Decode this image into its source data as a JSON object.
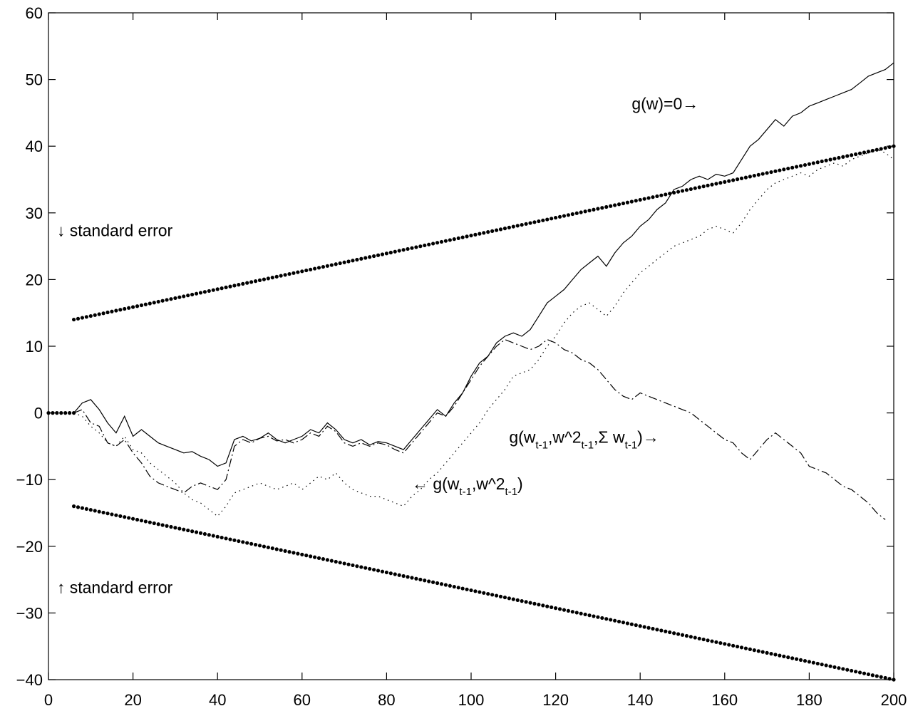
{
  "chart_data": {
    "type": "line",
    "title": "",
    "xlabel": "",
    "ylabel": "",
    "xlim": [
      0,
      200
    ],
    "ylim": [
      -40,
      60
    ],
    "xticks": [
      0,
      20,
      40,
      60,
      80,
      100,
      120,
      140,
      160,
      180,
      200
    ],
    "yticks": [
      -40,
      -30,
      -20,
      -10,
      0,
      10,
      20,
      30,
      40,
      50,
      60
    ],
    "grid": false,
    "legend": "none",
    "series": [
      {
        "style": "solid",
        "x": [
          6,
          8,
          10,
          12,
          14,
          16,
          18,
          20,
          22,
          24,
          26,
          28,
          30,
          32,
          34,
          36,
          38,
          40,
          42,
          44,
          46,
          48,
          50,
          52,
          54,
          56,
          58,
          60,
          62,
          64,
          66,
          68,
          70,
          72,
          74,
          76,
          78,
          80,
          82,
          84,
          86,
          88,
          90,
          92,
          94,
          96,
          98,
          100,
          102,
          104,
          106,
          108,
          110,
          112,
          114,
          116,
          118,
          120,
          122,
          124,
          126,
          128,
          130,
          132,
          134,
          136,
          138,
          140,
          142,
          144,
          146,
          148,
          150,
          152,
          154,
          156,
          158,
          160,
          162,
          164,
          166,
          168,
          170,
          172,
          174,
          176,
          178,
          180,
          182,
          184,
          186,
          188,
          190,
          192,
          194,
          196,
          198,
          200
        ],
        "y": [
          0,
          1.5,
          2.0,
          0.5,
          -1.5,
          -3.0,
          -0.5,
          -3.5,
          -2.5,
          -3.5,
          -4.5,
          -5.0,
          -5.5,
          -6.0,
          -5.8,
          -6.5,
          -7.0,
          -8.0,
          -7.5,
          -4.0,
          -3.5,
          -4.2,
          -3.8,
          -3.0,
          -4.0,
          -4.5,
          -4.0,
          -3.5,
          -2.5,
          -3.0,
          -1.5,
          -2.5,
          -4.0,
          -4.5,
          -4.0,
          -4.8,
          -4.3,
          -4.5,
          -5.0,
          -5.5,
          -4.0,
          -2.5,
          -1.0,
          0.5,
          -0.5,
          1.5,
          3.0,
          5.5,
          7.5,
          8.5,
          10.5,
          11.5,
          12.0,
          11.5,
          12.5,
          14.5,
          16.5,
          17.5,
          18.5,
          20.0,
          21.5,
          22.5,
          23.5,
          22.0,
          24.0,
          25.5,
          26.5,
          28.0,
          29.0,
          30.5,
          31.5,
          33.5,
          34.0,
          35.0,
          35.5,
          35.0,
          35.8,
          35.5,
          36.0,
          38.0,
          40.0,
          41.0,
          42.5,
          44.0,
          43.0,
          44.5,
          45.0,
          46.0,
          46.5,
          47.0,
          47.5,
          48.0,
          48.5,
          49.5,
          50.5,
          51.0,
          51.5,
          52.5
        ]
      },
      {
        "style": "dashdot",
        "label": "g(w_{t-1},w^2_{t-1},Σ w_{t-1})→",
        "x": [
          6,
          8,
          10,
          12,
          14,
          16,
          18,
          20,
          22,
          24,
          26,
          28,
          30,
          32,
          34,
          36,
          38,
          40,
          42,
          44,
          46,
          48,
          50,
          52,
          54,
          56,
          58,
          60,
          62,
          64,
          66,
          68,
          70,
          72,
          74,
          76,
          78,
          80,
          82,
          84,
          86,
          88,
          90,
          92,
          94,
          96,
          98,
          100,
          102,
          104,
          106,
          108,
          110,
          112,
          114,
          116,
          118,
          120,
          122,
          124,
          126,
          128,
          130,
          132,
          134,
          136,
          138,
          140,
          142,
          144,
          146,
          148,
          150,
          152,
          154,
          156,
          158,
          160,
          162,
          164,
          166,
          168,
          170,
          172,
          174,
          176,
          178,
          180,
          182,
          184,
          186,
          188,
          190,
          192,
          194,
          196,
          198
        ],
        "y": [
          0,
          0.5,
          -1.5,
          -2.0,
          -4.5,
          -5.0,
          -4.0,
          -6.0,
          -7.5,
          -9.5,
          -10.5,
          -11.0,
          -11.5,
          -12.0,
          -11.0,
          -10.5,
          -11.0,
          -11.5,
          -10.0,
          -5.0,
          -4.0,
          -4.5,
          -3.8,
          -3.5,
          -4.2,
          -4.0,
          -4.5,
          -4.0,
          -3.0,
          -3.5,
          -2.0,
          -2.8,
          -4.5,
          -5.0,
          -4.5,
          -5.0,
          -4.5,
          -4.8,
          -5.5,
          -6.0,
          -4.5,
          -3.0,
          -1.5,
          0,
          -0.5,
          1.0,
          3.0,
          5.0,
          7.0,
          8.5,
          10.0,
          11.0,
          10.5,
          10.0,
          9.5,
          10.0,
          11.0,
          10.5,
          9.5,
          9.0,
          8.0,
          7.5,
          6.5,
          5.0,
          3.5,
          2.5,
          2.0,
          3.0,
          2.5,
          2.0,
          1.5,
          1.0,
          0.5,
          0,
          -1.0,
          -2.0,
          -3.0,
          -4.0,
          -4.5,
          -6.0,
          -7.0,
          -5.5,
          -4.0,
          -3.0,
          -4.0,
          -5.0,
          -6.0,
          -8.0,
          -8.5,
          -9.0,
          -10.0,
          -11.0,
          -11.5,
          -12.5,
          -13.5,
          -15.0,
          -16.0
        ]
      },
      {
        "style": "dotted",
        "label": "← g(w_{t-1},w^2_{t-1})",
        "x": [
          6,
          8,
          10,
          12,
          14,
          16,
          18,
          20,
          22,
          24,
          26,
          28,
          30,
          32,
          34,
          36,
          38,
          40,
          42,
          44,
          46,
          48,
          50,
          52,
          54,
          56,
          58,
          60,
          62,
          64,
          66,
          68,
          70,
          72,
          74,
          76,
          78,
          80,
          82,
          84,
          86,
          88,
          90,
          92,
          94,
          96,
          98,
          100,
          102,
          104,
          106,
          108,
          110,
          112,
          114,
          116,
          118,
          120,
          122,
          124,
          126,
          128,
          130,
          132,
          134,
          136,
          138,
          140,
          142,
          144,
          146,
          148,
          150,
          152,
          154,
          156,
          158,
          160,
          162,
          164,
          166,
          168,
          170,
          172,
          174,
          176,
          178,
          180,
          182,
          184,
          186,
          188,
          190,
          192,
          194,
          196,
          198,
          200
        ],
        "y": [
          0,
          -0.5,
          -2.0,
          -3.0,
          -4.5,
          -5.0,
          -3.5,
          -5.5,
          -6.0,
          -7.5,
          -8.5,
          -9.5,
          -10.5,
          -12.0,
          -13.0,
          -13.5,
          -14.5,
          -15.5,
          -14.0,
          -12.0,
          -11.5,
          -11.0,
          -10.5,
          -11.0,
          -11.5,
          -11.0,
          -10.5,
          -11.5,
          -10.5,
          -9.5,
          -10.0,
          -9.0,
          -10.5,
          -11.5,
          -12.0,
          -12.5,
          -12.5,
          -13.0,
          -13.5,
          -14.0,
          -12.5,
          -11.5,
          -10.0,
          -9.0,
          -7.5,
          -6.0,
          -4.5,
          -3.0,
          -1.5,
          0.5,
          2.0,
          3.5,
          5.5,
          6.0,
          6.5,
          8.0,
          10.0,
          11.5,
          13.5,
          15.0,
          16.0,
          16.5,
          15.5,
          14.5,
          16.0,
          18.0,
          19.5,
          21.0,
          22.0,
          23.0,
          24.0,
          25.0,
          25.5,
          26.0,
          26.5,
          27.5,
          28.0,
          27.5,
          27.0,
          28.5,
          30.5,
          32.0,
          33.5,
          34.5,
          35.0,
          35.5,
          36.0,
          35.5,
          36.5,
          37.0,
          37.5,
          37.0,
          38.0,
          38.5,
          39.0,
          39.5,
          39.0,
          38.0
        ]
      },
      {
        "style": "dots",
        "x": [
          0,
          1,
          2,
          3,
          4,
          5,
          6
        ],
        "y": [
          0,
          0,
          0,
          0,
          0,
          0,
          0
        ]
      },
      {
        "style": "dots",
        "label": "↓ standard error",
        "x": [
          6,
          200
        ],
        "y": [
          14,
          40
        ]
      },
      {
        "style": "dots",
        "label": "↑ standard error",
        "x": [
          6,
          200
        ],
        "y": [
          -14,
          -40
        ]
      }
    ],
    "annotations": [
      {
        "text": "g(w)=0→",
        "x": 138,
        "y": 45.5
      },
      {
        "text": "↓ standard error",
        "x": 2,
        "y": 26.5
      },
      {
        "text": "↑ standard error",
        "x": 2,
        "y": -27
      },
      {
        "text": "g(w_{t-1},w^2_{t-1},Σ w_{t-1})→",
        "x": 109,
        "y": -4.5
      },
      {
        "text": "← g(w_{t-1},w^2_{t-1})",
        "x": 86,
        "y": -11.5
      }
    ]
  }
}
